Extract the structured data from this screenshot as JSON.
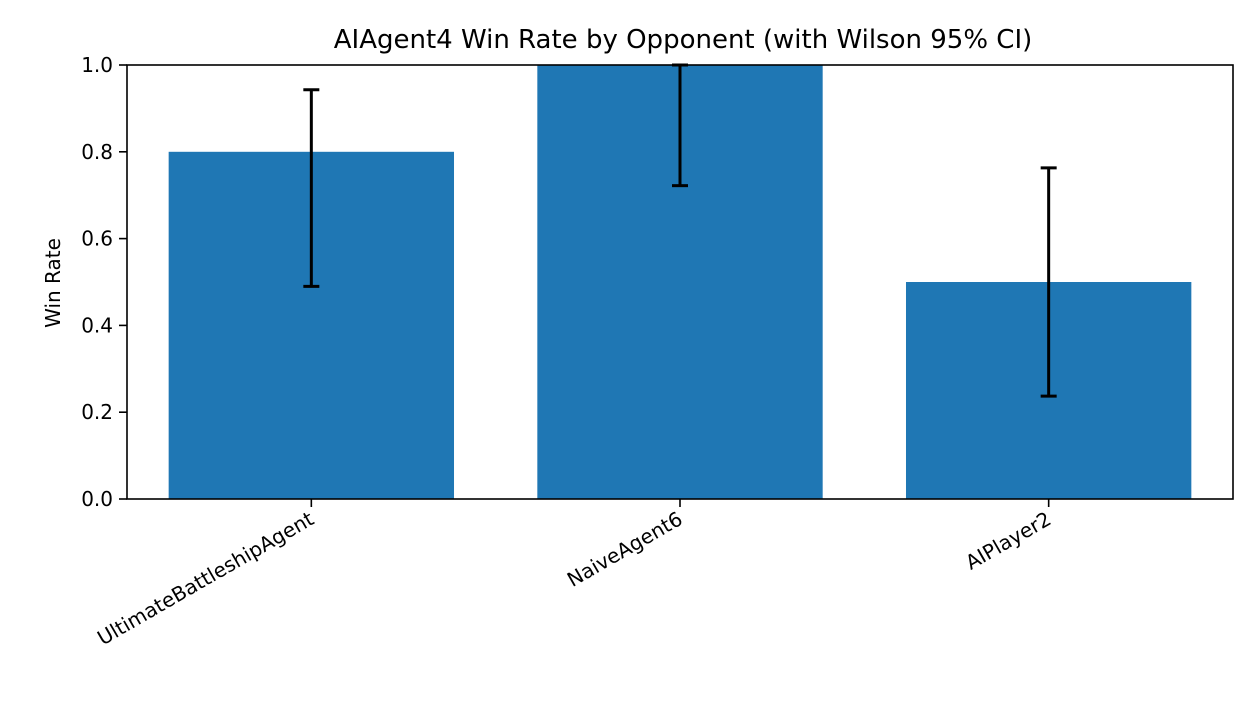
{
  "chart_data": {
    "type": "bar",
    "title": "AIAgent4 Win Rate by Opponent (with Wilson 95% CI)",
    "xlabel": "",
    "ylabel": "Win Rate",
    "categories": [
      "UltimateBattleshipAgent",
      "NaiveAgent6",
      "AIPlayer2"
    ],
    "values": [
      0.8,
      1.0,
      0.5
    ],
    "ci_lower": [
      0.49,
      0.722,
      0.237
    ],
    "ci_upper": [
      0.943,
      1.0,
      0.763
    ],
    "ylim": [
      0,
      1.0
    ],
    "yticks": [
      "0.0",
      "0.2",
      "0.4",
      "0.6",
      "0.8",
      "1.0"
    ],
    "bar_color": "#1f77b4",
    "errorbar_color": "#000000",
    "grid": false,
    "legend": "none"
  }
}
